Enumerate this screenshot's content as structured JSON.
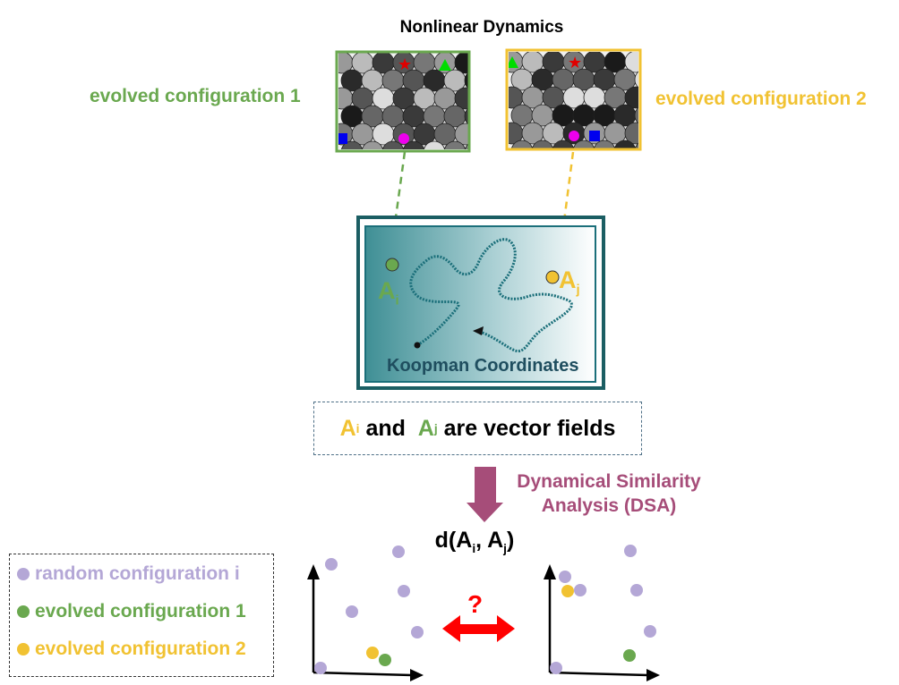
{
  "title": "Nonlinear Dynamics",
  "config1_label": "evolved configuration 1",
  "config2_label": "evolved configuration 2",
  "koopman_label": "Koopman Coordinates",
  "point_i": {
    "letter": "A",
    "sub": "i"
  },
  "point_j": {
    "letter": "A",
    "sub": "j"
  },
  "vector_fields": {
    "a": "A",
    "a_sub": "i",
    "and": "and",
    "b": "A",
    "b_sub": "j",
    "rest": "are vector fields"
  },
  "dsa_label": "Dynamical Similarity Analysis (DSA)",
  "distance": {
    "prefix": "d(A",
    "i": "i",
    "mid": ", A",
    "j": "j",
    "suffix": ")"
  },
  "question": "?",
  "legend": [
    {
      "label": "random configuration i",
      "color": "#b4a7d6"
    },
    {
      "label": "evolved configuration 1",
      "color": "#6aa84f"
    },
    {
      "label": "evolved configuration 2",
      "color": "#f1c232"
    }
  ],
  "colors": {
    "green": "#6aa84f",
    "yellow": "#f1c232",
    "purple": "#b4a7d6",
    "teal": "#1b6f7a",
    "dsa": "#a64d79",
    "arrow": "#ff0000"
  }
}
